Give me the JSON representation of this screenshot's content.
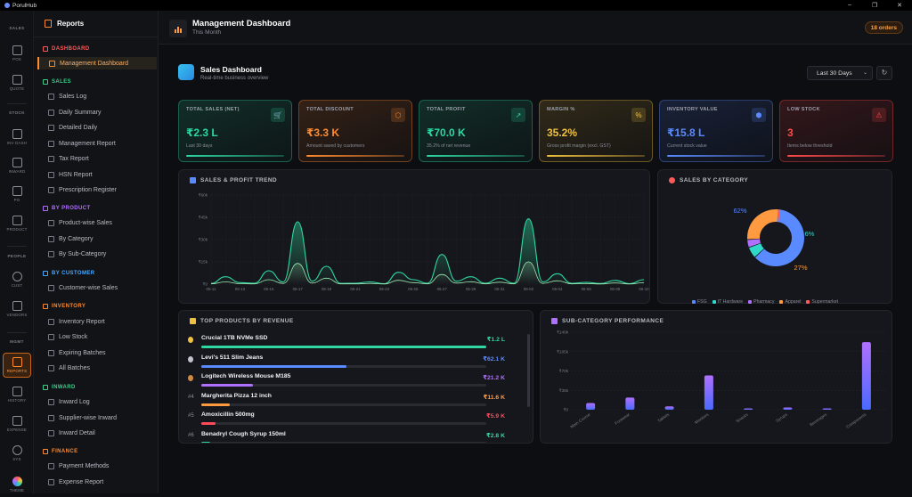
{
  "window": {
    "title": "PorulHub",
    "controls": [
      "–",
      "❐",
      "✕"
    ]
  },
  "rail": {
    "groups": [
      "SALES",
      "STOCK",
      "PEOPLE",
      "MGMT"
    ],
    "items": [
      {
        "label": "POS"
      },
      {
        "label": "QUOTE"
      },
      {
        "label": "INV DASH"
      },
      {
        "label": "INWARD"
      },
      {
        "label": "PO"
      },
      {
        "label": "PRODUCT"
      },
      {
        "label": "CUST"
      },
      {
        "label": "VENDORS"
      },
      {
        "label": "REPORTS"
      },
      {
        "label": "HISTORY"
      },
      {
        "label": "EXPENSE"
      },
      {
        "label": "SYS"
      },
      {
        "label": "THEME"
      }
    ]
  },
  "sidebar": {
    "title": "Reports",
    "sections": [
      {
        "label": "DASHBOARD",
        "color": "#ff5a5a",
        "items": [
          "Management Dashboard"
        ]
      },
      {
        "label": "SALES",
        "color": "#3ad08a",
        "items": [
          "Sales Log",
          "Daily Summary",
          "Detailed Daily",
          "Management Report",
          "Tax Report",
          "HSN Report",
          "Prescription Register"
        ]
      },
      {
        "label": "BY PRODUCT",
        "color": "#b070ff",
        "items": [
          "Product-wise Sales",
          "By Category",
          "By Sub-Category"
        ]
      },
      {
        "label": "BY CUSTOMER",
        "color": "#4aa8ff",
        "items": [
          "Customer-wise Sales"
        ]
      },
      {
        "label": "INVENTORY",
        "color": "#ff8a30",
        "items": [
          "Inventory Report",
          "Low Stock",
          "Expiring Batches",
          "All Batches"
        ]
      },
      {
        "label": "INWARD",
        "color": "#3ad08a",
        "items": [
          "Inward Log",
          "Supplier-wise Inward",
          "Inward Detail"
        ]
      },
      {
        "label": "FINANCE",
        "color": "#ff8a30",
        "items": [
          "Payment Methods",
          "Expense Report"
        ]
      }
    ]
  },
  "header": {
    "title": "Management Dashboard",
    "subtitle": "This Month",
    "orders_badge": "18 orders"
  },
  "dashboard": {
    "title": "Sales Dashboard",
    "subtitle": "Real-time business overview",
    "range": "Last 30 Days",
    "range_chevron": "⌄",
    "refresh": "↻"
  },
  "kpis": [
    {
      "label": "TOTAL SALES (NET)",
      "value": "₹2.3 L",
      "sub": "Last 30 days",
      "icon": "cart-icon",
      "glyph": "🛒",
      "color": "#2ed8a0"
    },
    {
      "label": "TOTAL DISCOUNT",
      "value": "₹3.3 K",
      "sub": "Amount saved by customers",
      "icon": "tag-icon",
      "glyph": "⬡",
      "color": "#ff8a30"
    },
    {
      "label": "TOTAL PROFIT",
      "value": "₹70.0 K",
      "sub": "35.2% of net revenue",
      "icon": "trend-up-icon",
      "glyph": "↗",
      "color": "#2ed8a0"
    },
    {
      "label": "MARGIN %",
      "value": "35.2%",
      "sub": "Gross profit margin (excl. GST)",
      "icon": "percent-icon",
      "glyph": "%",
      "color": "#f0c040"
    },
    {
      "label": "INVENTORY VALUE",
      "value": "₹15.8 L",
      "sub": "Current stock value",
      "icon": "box-icon",
      "glyph": "⬢",
      "color": "#5a8aff"
    },
    {
      "label": "LOW STOCK",
      "value": "3",
      "sub": "Items below threshold",
      "icon": "warning-icon",
      "glyph": "⚠",
      "color": "#ff4a4a"
    }
  ],
  "trend": {
    "title": "SALES & PROFIT TREND",
    "chart_data": {
      "type": "area",
      "y_ticks": [
        "₹60k",
        "₹45k",
        "₹30k",
        "₹15k",
        "₹0"
      ],
      "ylim": [
        0,
        60000
      ],
      "x": [
        "05-11",
        "05-12",
        "05-13",
        "05-14",
        "05-15",
        "05-16",
        "05-17",
        "05-18",
        "05-19",
        "05-20",
        "05-21",
        "05-22",
        "05-23",
        "05-24",
        "05-25",
        "05-26",
        "05-27",
        "05-28",
        "05-29",
        "05-30",
        "05-31",
        "06-01",
        "06-02",
        "06-03",
        "06-04",
        "06-05",
        "06-06",
        "06-07",
        "06-08",
        "06-09",
        "06-10"
      ],
      "x_labels": [
        "05-11",
        "05-13",
        "05-15",
        "05-17",
        "05-19",
        "05-21",
        "05-23",
        "05-25",
        "05-27",
        "05-29",
        "05-31",
        "06-02",
        "06-04",
        "06-06",
        "06-08",
        "06-10"
      ],
      "series": [
        {
          "name": "Sales",
          "color": "#2ed8a0",
          "values": [
            500,
            5000,
            1000,
            600,
            9000,
            1500,
            42000,
            2000,
            12000,
            500,
            600,
            1500,
            300,
            8000,
            3000,
            600,
            20000,
            2000,
            5000,
            600,
            4000,
            600,
            44000,
            1500,
            7000,
            500,
            1200,
            400,
            2500,
            300,
            3000
          ]
        },
        {
          "name": "Profit",
          "color": "#9de8b0",
          "values": [
            200,
            1500,
            300,
            200,
            3000,
            500,
            14000,
            700,
            4000,
            200,
            200,
            500,
            100,
            2600,
            1000,
            200,
            6500,
            700,
            1600,
            200,
            1300,
            200,
            15000,
            500,
            2300,
            200,
            400,
            100,
            800,
            100,
            1000
          ]
        }
      ]
    }
  },
  "category": {
    "title": "SALES BY CATEGORY",
    "chart_data": {
      "type": "pie",
      "slices": [
        {
          "label": "FSG",
          "value": 62,
          "color": "#5a8aff"
        },
        {
          "label": "IT Hardware",
          "value": 6,
          "color": "#2ed8c8"
        },
        {
          "label": "Pharmacy",
          "value": 4,
          "color": "#b070ff"
        },
        {
          "label": "Apparel",
          "value": 27,
          "color": "#ff9a40"
        },
        {
          "label": "Supermarket",
          "value": 1,
          "color": "#ff5a5a"
        }
      ],
      "data_labels": [
        "62%",
        "6%",
        "27%"
      ]
    }
  },
  "top_products": {
    "title": "TOP PRODUCTS BY REVENUE",
    "items": [
      {
        "rank": "",
        "name": "Crucial 1TB NVMe SSD",
        "value": "₹1.2 L",
        "pct": 1.0,
        "color": "#2ed8a0",
        "medal": "#f0c040"
      },
      {
        "rank": "",
        "name": "Levi's 511 Slim Jeans",
        "value": "₹62.1 K",
        "pct": 0.51,
        "color": "#5a8aff",
        "medal": "#c0c4cc"
      },
      {
        "rank": "",
        "name": "Logitech Wireless Mouse M185",
        "value": "₹21.2 K",
        "pct": 0.18,
        "color": "#b070ff",
        "medal": "#d08a40"
      },
      {
        "rank": "#4",
        "name": "Margherita Pizza 12 inch",
        "value": "₹11.6 K",
        "pct": 0.1,
        "color": "#ff9a40",
        "medal": ""
      },
      {
        "rank": "#5",
        "name": "Amoxicillin 500mg",
        "value": "₹5.9 K",
        "pct": 0.05,
        "color": "#ff4a5a",
        "medal": ""
      },
      {
        "rank": "#6",
        "name": "Benadryl Cough Syrup 150ml",
        "value": "₹2.8 K",
        "pct": 0.03,
        "color": "#2ed8a0",
        "medal": ""
      }
    ]
  },
  "subcategory": {
    "title": "SUB-CATEGORY PERFORMANCE",
    "chart_data": {
      "type": "bar",
      "y_ticks": [
        "₹140k",
        "₹105k",
        "₹70k",
        "₹35k",
        "₹0"
      ],
      "ylim": [
        0,
        140000
      ],
      "categories": [
        "Main Course",
        "Footwear",
        "Tablets",
        "Monitors",
        "Snacks",
        "Syrups",
        "Beverages",
        "Components"
      ],
      "values": [
        12000,
        22000,
        6000,
        62000,
        1000,
        4000,
        2000,
        122000
      ]
    }
  }
}
